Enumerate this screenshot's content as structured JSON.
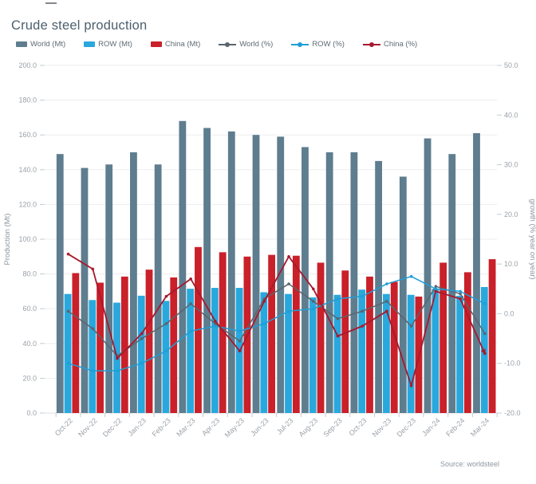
{
  "page": {
    "title": "Crude steel production",
    "source": "Source: worldsteel"
  },
  "chart_data": {
    "type": "combo-bar-line",
    "title": "Crude steel production",
    "legend_position": "top",
    "grid": true,
    "categories": [
      "Oct-22",
      "Nov-22",
      "Dec-22",
      "Jan-23",
      "Feb-23",
      "Mar-23",
      "Apr-23",
      "May-23",
      "Jun-23",
      "Jul-23",
      "Aug-23",
      "Sep-23",
      "Oct-23",
      "Nov-23",
      "Dec-23",
      "Jan-24",
      "Feb-24",
      "Mar-24"
    ],
    "left_axis": {
      "title": "Production (Mt)",
      "min": 0,
      "max": 200,
      "step": 20
    },
    "right_axis": {
      "title": "growth (% year on year)",
      "min": -20,
      "max": 50,
      "step": 10
    },
    "series": [
      {
        "name": "World (Mt)",
        "type": "bar",
        "axis": "left",
        "color": "#5e7d8e",
        "values": [
          149,
          141,
          143,
          150,
          143,
          168,
          164,
          162,
          160,
          159,
          153,
          150,
          150,
          145,
          136,
          158,
          149,
          161
        ]
      },
      {
        "name": "ROW (Mt)",
        "type": "bar",
        "axis": "left",
        "color": "#29a8dd",
        "values": [
          68.5,
          65,
          63.5,
          67.5,
          64.5,
          71.5,
          72,
          72,
          69.5,
          68.5,
          66.5,
          68,
          71,
          68.5,
          68,
          71.5,
          67.5,
          72.5
        ]
      },
      {
        "name": "China (Mt)",
        "type": "bar",
        "axis": "left",
        "color": "#c9202a",
        "values": [
          80.5,
          75,
          78.5,
          82.5,
          78,
          95.5,
          92.5,
          90,
          91,
          90.5,
          86.5,
          82,
          78.5,
          75.5,
          67,
          86.5,
          81,
          88.5
        ]
      },
      {
        "name": "World (%)",
        "type": "line",
        "axis": "right",
        "color": "#5a656d",
        "values": [
          0.5,
          -3,
          -8.5,
          -5,
          -2,
          2,
          -2,
          -5.5,
          3,
          6,
          2.5,
          -1,
          0.5,
          2.5,
          -2.5,
          5.5,
          4,
          -4
        ]
      },
      {
        "name": "ROW (%)",
        "type": "line",
        "axis": "right",
        "color": "#1f9ed6",
        "values": [
          -10,
          -11.5,
          -11.5,
          -10,
          -7.5,
          -3.5,
          -2.5,
          -3.5,
          -2,
          0.5,
          1,
          3,
          3.5,
          6,
          7.5,
          5,
          4.5,
          2
        ]
      },
      {
        "name": "China (%)",
        "type": "line",
        "axis": "right",
        "color": "#a6192e",
        "end_arrow": true,
        "values": [
          12,
          9,
          -9,
          -4,
          3.5,
          7,
          -1.5,
          -7.5,
          2.5,
          11.5,
          5,
          -4.5,
          -2.5,
          0.5,
          -14.5,
          4.5,
          3,
          -8
        ]
      }
    ]
  }
}
